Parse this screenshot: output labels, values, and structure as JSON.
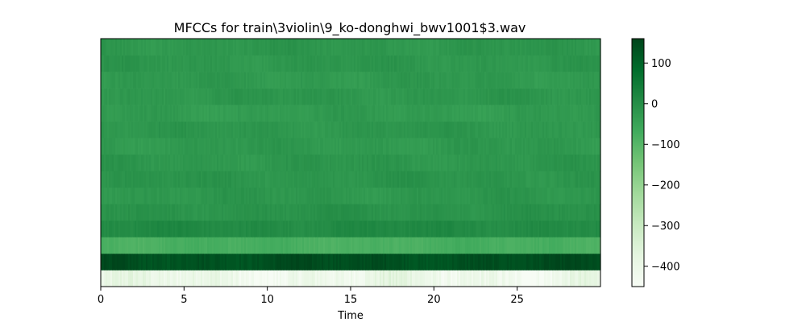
{
  "chart_data": {
    "type": "heatmap",
    "title": "MFCCs for train\\3violin\\9_ko-donghwi_bwv1001$3.wav",
    "xlabel": "Time",
    "ylabel": "",
    "xlim": [
      0,
      30
    ],
    "x_ticks": [
      0,
      5,
      10,
      15,
      20,
      25
    ],
    "colormap": "Greens",
    "colorbar": {
      "range": [
        -450,
        160
      ],
      "ticks": [
        100,
        0,
        -100,
        -200,
        -300,
        -400
      ],
      "tick_labels": [
        "100",
        "0",
        "−100",
        "−200",
        "−300",
        "−400"
      ]
    },
    "n_coefficients": 15,
    "coefficient_row_means": [
      -410,
      140,
      -80,
      10,
      -10,
      -20,
      -15,
      -20,
      -25,
      -20,
      -30,
      -20,
      -25,
      -20,
      -20
    ],
    "grid": false,
    "legend": "none"
  }
}
